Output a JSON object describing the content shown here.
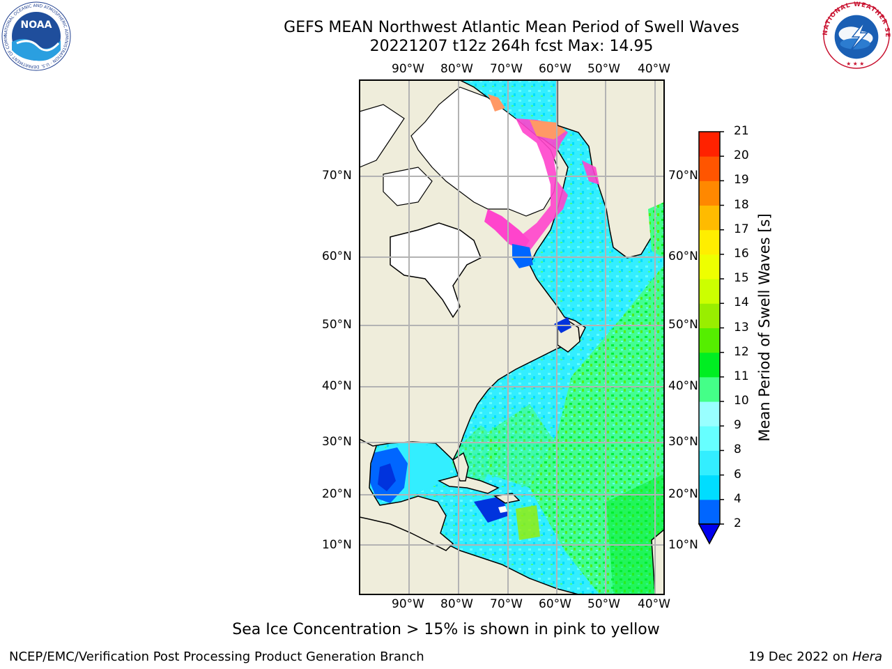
{
  "title": "GEFS MEAN Northwest Atlantic Mean Period of Swell Waves",
  "subtitle": "20221207 t12z 264h fcst   Max: 14.95",
  "logos": {
    "noaa_text": "NOAA",
    "noaa_ring": "NATIONAL OCEANIC AND ATMOSPHERIC ADMINISTRATION · U.S. DEPARTMENT OF COMMERCE",
    "nws_ring": "NATIONAL WEATHER SERVICE"
  },
  "map": {
    "lon_labels": [
      "90°W",
      "80°W",
      "70°W",
      "60°W",
      "50°W",
      "40°W"
    ],
    "lat_labels": [
      "70°N",
      "60°N",
      "50°N",
      "40°N",
      "30°N",
      "20°N",
      "10°N"
    ],
    "land_color": "#efeddb",
    "ice_color": "#ffffff"
  },
  "colorbar": {
    "label": "Mean Period of Swell Waves [s]",
    "ticks": [
      "2",
      "4",
      "6",
      "8",
      "9",
      "10",
      "11",
      "12",
      "13",
      "14",
      "15",
      "16",
      "17",
      "18",
      "19",
      "20",
      "21"
    ],
    "colors": [
      "#0066ff",
      "#00ddff",
      "#33eeff",
      "#66ffff",
      "#99ffff",
      "#44ff88",
      "#00ee22",
      "#55ee00",
      "#99ee00",
      "#ccff00",
      "#eeff00",
      "#ffee00",
      "#ffbb00",
      "#ff8800",
      "#ff5500",
      "#ff2200"
    ],
    "under_color": "#0000ee"
  },
  "note": "Sea Ice Concentration > 15% is shown in pink to yellow",
  "footer": {
    "left": "NCEP/EMC/Verification Post Processing Product Generation Branch",
    "date": "19 Dec 2022 on",
    "host": "Hera"
  }
}
